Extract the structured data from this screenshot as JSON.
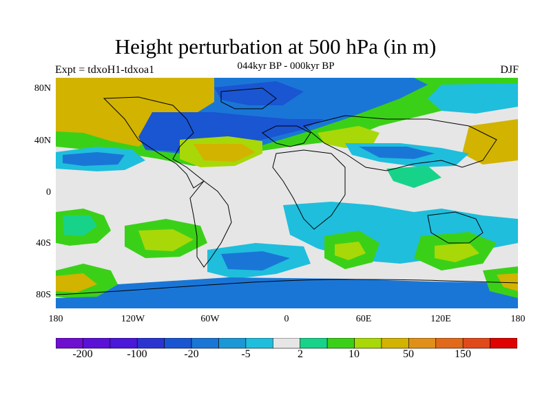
{
  "title": "Height perturbation at 500 hPa (in m)",
  "subtitle": "044kyr BP - 000kyr BP",
  "experiment_label": "Expt = tdxoH1-tdxoa1",
  "season_label": "DJF",
  "y_ticks": [
    "80N",
    "40N",
    "0",
    "40S",
    "80S"
  ],
  "x_ticks": [
    "180",
    "120W",
    "60W",
    "0",
    "60E",
    "120E",
    "180"
  ],
  "colorbar": {
    "colors": [
      "#6f0fd0",
      "#5a12d6",
      "#4a18d8",
      "#2a35d0",
      "#1a55d2",
      "#1a76d6",
      "#1c97d6",
      "#1fbedc",
      "#e6e6e6",
      "#17d389",
      "#3bd018",
      "#a8d808",
      "#d2b300",
      "#e0901a",
      "#e06a1a",
      "#e04a1a",
      "#e00000"
    ],
    "labels": [
      "-200",
      "-100",
      "-20",
      "-5",
      "2",
      "10",
      "50",
      "150"
    ]
  },
  "map_colors": {
    "ocean_neutral": "#e6e6e6",
    "strong_neg": "#1a55d2",
    "mid_neg": "#1a76d6",
    "weak_neg": "#1fbedc",
    "weak_pos": "#17d389",
    "mid_pos": "#3bd018",
    "yellow_green": "#a8d808",
    "strong_pos": "#d2b300",
    "coast": "#000000"
  }
}
